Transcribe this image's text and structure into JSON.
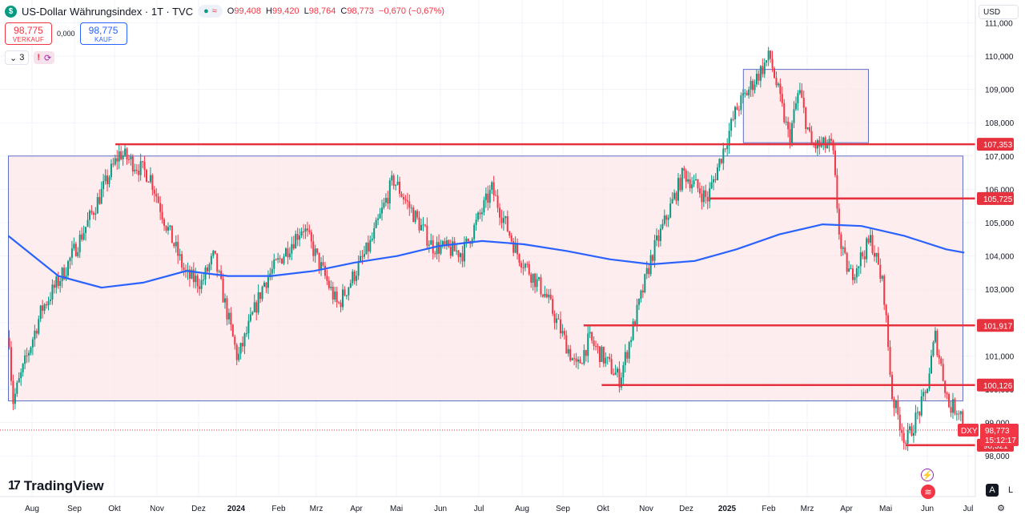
{
  "header": {
    "symbol_logo": "$",
    "title": "US-Dollar Währungsindex · 1T · TVC",
    "status_pill_symbol": "≈",
    "ohlc": {
      "o_label": "O",
      "o": "99,408",
      "h_label": "H",
      "h": "99,420",
      "l_label": "L",
      "l": "98,764",
      "c_label": "C",
      "c": "98,773",
      "change": "−0,670 (−0,67%)"
    }
  },
  "trade": {
    "sell_price": "98,775",
    "sell_label": "VERKAUF",
    "spread": "0,000",
    "buy_price": "98,775",
    "buy_label": "KAUF"
  },
  "indicators": {
    "count": "3",
    "collapse_icon": "chevron-down-icon"
  },
  "currency": "USD",
  "branding": "TradingView",
  "price_scale": {
    "ticks": [
      "111,000",
      "110,000",
      "109,000",
      "108,000",
      "107,000",
      "106,000",
      "105,000",
      "104,000",
      "103,000",
      "102,000",
      "101,000",
      "100,000",
      "99,000",
      "98,000"
    ],
    "tick_values": [
      111,
      110,
      109,
      108,
      107,
      106,
      105,
      104,
      103,
      102,
      101,
      100,
      99,
      98
    ],
    "levels": [
      {
        "label": "107,353",
        "value": 107.353
      },
      {
        "label": "105,725",
        "value": 105.725
      },
      {
        "label": "101,917",
        "value": 101.917
      },
      {
        "label": "100,126",
        "value": 100.126
      },
      {
        "label": "98,321",
        "value": 98.321
      }
    ],
    "current": {
      "symbol": "DXY",
      "price": "98,773",
      "value": 98.773,
      "countdown": "15:12:17"
    }
  },
  "time_axis": [
    "Aug",
    "Sep",
    "Okt",
    "Nov",
    "Dez",
    "2024",
    "Feb",
    "Mrz",
    "Apr",
    "Mai",
    "Jun",
    "Jul",
    "Aug",
    "Sep",
    "Okt",
    "Nov",
    "Dez",
    "2025",
    "Feb",
    "Mrz",
    "Apr",
    "Mai",
    "Jun",
    "Jul"
  ],
  "colors": {
    "up": "#089981",
    "down": "#f23645",
    "ma": "#2962ff",
    "zone_fill": "#fde7ea",
    "zone_border": "#5b6fc7",
    "level": "#e5323e"
  },
  "chart_data": {
    "type": "candlestick",
    "symbol": "DXY",
    "ylim": [
      97.6,
      111.3
    ],
    "x_ticks": [
      "Aug",
      "Sep",
      "Okt",
      "Nov",
      "Dez",
      "2024",
      "Feb",
      "Mrz",
      "Apr",
      "Mai",
      "Jun",
      "Jul",
      "Aug",
      "Sep",
      "Okt",
      "Nov",
      "Dez",
      "2025",
      "Feb",
      "Mrz",
      "Apr",
      "Mai",
      "Jun",
      "Jul"
    ],
    "price_path": [
      {
        "t": "2023-07-15",
        "v": 102.0
      },
      {
        "t": "2023-07-18",
        "v": 99.6
      },
      {
        "t": "2023-08-08",
        "v": 102.4
      },
      {
        "t": "2023-08-25",
        "v": 103.6
      },
      {
        "t": "2023-09-10",
        "v": 105.0
      },
      {
        "t": "2023-10-03",
        "v": 107.1
      },
      {
        "t": "2023-10-25",
        "v": 106.4
      },
      {
        "t": "2023-11-05",
        "v": 105.0
      },
      {
        "t": "2023-11-20",
        "v": 103.4
      },
      {
        "t": "2023-12-01",
        "v": 103.2
      },
      {
        "t": "2023-12-10",
        "v": 104.0
      },
      {
        "t": "2023-12-27",
        "v": 100.9
      },
      {
        "t": "2024-01-15",
        "v": 103.2
      },
      {
        "t": "2024-02-12",
        "v": 104.9
      },
      {
        "t": "2024-03-08",
        "v": 102.5
      },
      {
        "t": "2024-04-01",
        "v": 104.4
      },
      {
        "t": "2024-04-17",
        "v": 106.3
      },
      {
        "t": "2024-05-15",
        "v": 104.3
      },
      {
        "t": "2024-06-06",
        "v": 104.1
      },
      {
        "t": "2024-06-27",
        "v": 106.0
      },
      {
        "t": "2024-07-15",
        "v": 104.1
      },
      {
        "t": "2024-08-05",
        "v": 102.8
      },
      {
        "t": "2024-08-27",
        "v": 100.6
      },
      {
        "t": "2024-09-05",
        "v": 101.5
      },
      {
        "t": "2024-09-27",
        "v": 100.3
      },
      {
        "t": "2024-10-20",
        "v": 104.0
      },
      {
        "t": "2024-11-12",
        "v": 106.5
      },
      {
        "t": "2024-11-29",
        "v": 105.7
      },
      {
        "t": "2024-12-20",
        "v": 108.4
      },
      {
        "t": "2025-01-13",
        "v": 110.0
      },
      {
        "t": "2025-01-27",
        "v": 107.5
      },
      {
        "t": "2025-02-03",
        "v": 109.0
      },
      {
        "t": "2025-02-12",
        "v": 107.3
      },
      {
        "t": "2025-02-27",
        "v": 107.3
      },
      {
        "t": "2025-03-05",
        "v": 104.2
      },
      {
        "t": "2025-03-12",
        "v": 103.4
      },
      {
        "t": "2025-03-27",
        "v": 104.5
      },
      {
        "t": "2025-04-05",
        "v": 103.0
      },
      {
        "t": "2025-04-11",
        "v": 99.8
      },
      {
        "t": "2025-04-21",
        "v": 98.4
      },
      {
        "t": "2025-05-05",
        "v": 99.8
      },
      {
        "t": "2025-05-12",
        "v": 101.6
      },
      {
        "t": "2025-05-22",
        "v": 99.5
      },
      {
        "t": "2025-05-30",
        "v": 99.4
      },
      {
        "t": "2025-06-02",
        "v": 98.77
      }
    ],
    "moving_average": [
      {
        "t": "2023-07-15",
        "v": 104.6
      },
      {
        "t": "2023-08-20",
        "v": 103.4
      },
      {
        "t": "2023-09-20",
        "v": 103.05
      },
      {
        "t": "2023-10-20",
        "v": 103.2
      },
      {
        "t": "2023-11-20",
        "v": 103.55
      },
      {
        "t": "2023-12-20",
        "v": 103.4
      },
      {
        "t": "2024-01-20",
        "v": 103.4
      },
      {
        "t": "2024-02-20",
        "v": 103.55
      },
      {
        "t": "2024-03-20",
        "v": 103.8
      },
      {
        "t": "2024-04-20",
        "v": 104.0
      },
      {
        "t": "2024-05-20",
        "v": 104.3
      },
      {
        "t": "2024-06-20",
        "v": 104.45
      },
      {
        "t": "2024-07-20",
        "v": 104.35
      },
      {
        "t": "2024-08-20",
        "v": 104.15
      },
      {
        "t": "2024-09-20",
        "v": 103.9
      },
      {
        "t": "2024-10-20",
        "v": 103.75
      },
      {
        "t": "2024-11-20",
        "v": 103.85
      },
      {
        "t": "2024-12-20",
        "v": 104.2
      },
      {
        "t": "2025-01-20",
        "v": 104.65
      },
      {
        "t": "2025-02-20",
        "v": 104.95
      },
      {
        "t": "2025-03-20",
        "v": 104.9
      },
      {
        "t": "2025-04-20",
        "v": 104.6
      },
      {
        "t": "2025-05-20",
        "v": 104.2
      },
      {
        "t": "2025-06-02",
        "v": 104.1
      }
    ],
    "zones": [
      {
        "from": "2023-07-15",
        "to": "2025-06-01",
        "low": 99.65,
        "high": 107.0
      },
      {
        "from": "2024-12-25",
        "to": "2025-03-25",
        "low": 107.4,
        "high": 109.6
      }
    ],
    "levels": [
      {
        "from": "2023-09-30",
        "to": "2025-07-25",
        "value": 107.353
      },
      {
        "from": "2024-12-01",
        "to": "2025-07-25",
        "value": 105.725
      },
      {
        "from": "2024-09-01",
        "to": "2025-07-25",
        "value": 101.917
      },
      {
        "from": "2024-09-14",
        "to": "2025-07-25",
        "value": 100.126
      },
      {
        "from": "2025-04-21",
        "to": "2025-07-25",
        "value": 98.321
      }
    ]
  }
}
